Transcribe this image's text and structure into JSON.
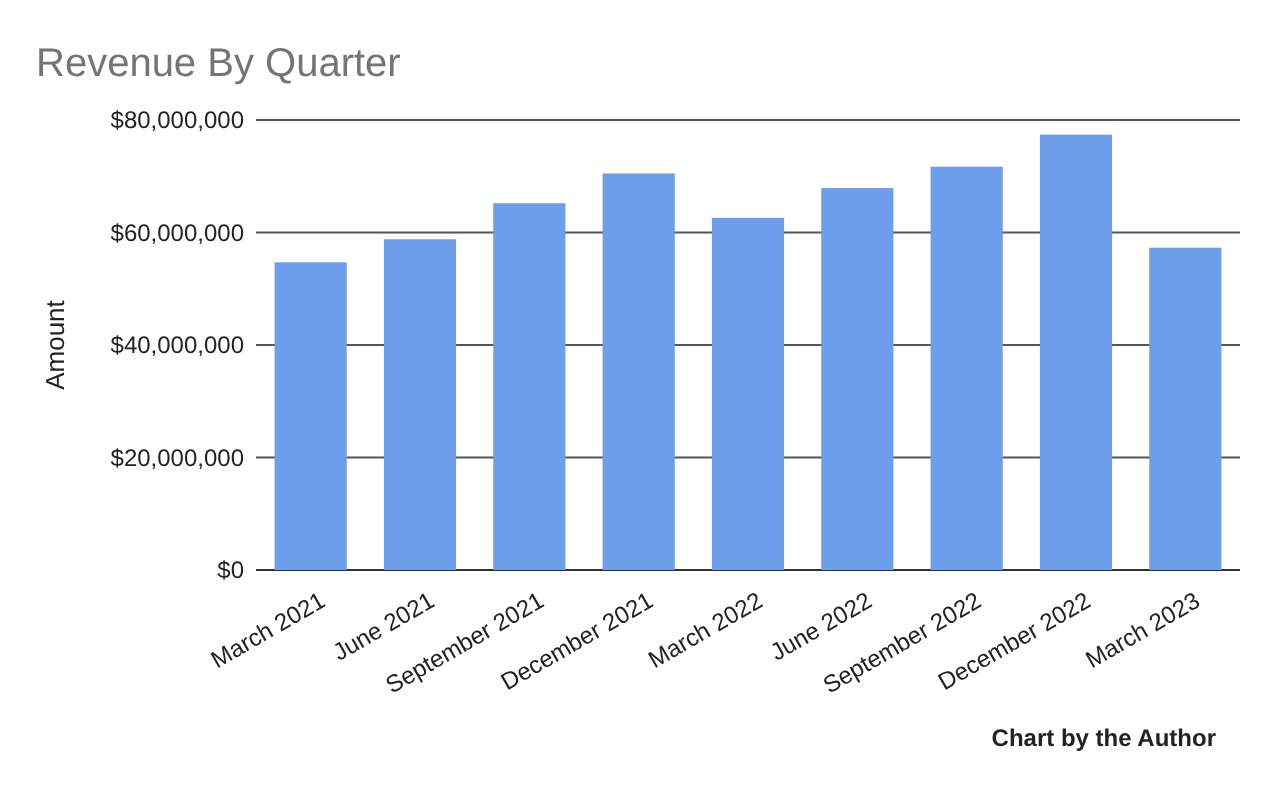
{
  "chart_data": {
    "type": "bar",
    "title": "Revenue By Quarter",
    "ylabel": "Amount",
    "categories": [
      "March 2021",
      "June 2021",
      "September 2021",
      "December 2021",
      "March 2022",
      "June 2022",
      "September 2022",
      "December 2022",
      "March 2023"
    ],
    "values": [
      54700000,
      58800000,
      65200000,
      70500000,
      62600000,
      67900000,
      71700000,
      77400000,
      57300000
    ],
    "color": "#6d9eeb",
    "ylim": [
      0,
      80000000
    ],
    "yticks": [
      {
        "value": 0,
        "label": "$0"
      },
      {
        "value": 20000000,
        "label": "$20,000,000"
      },
      {
        "value": 40000000,
        "label": "$40,000,000"
      },
      {
        "value": 60000000,
        "label": "$60,000,000"
      },
      {
        "value": 80000000,
        "label": "$80,000,000"
      }
    ],
    "grid": "y",
    "annotations": [
      "Chart by the Author"
    ]
  }
}
